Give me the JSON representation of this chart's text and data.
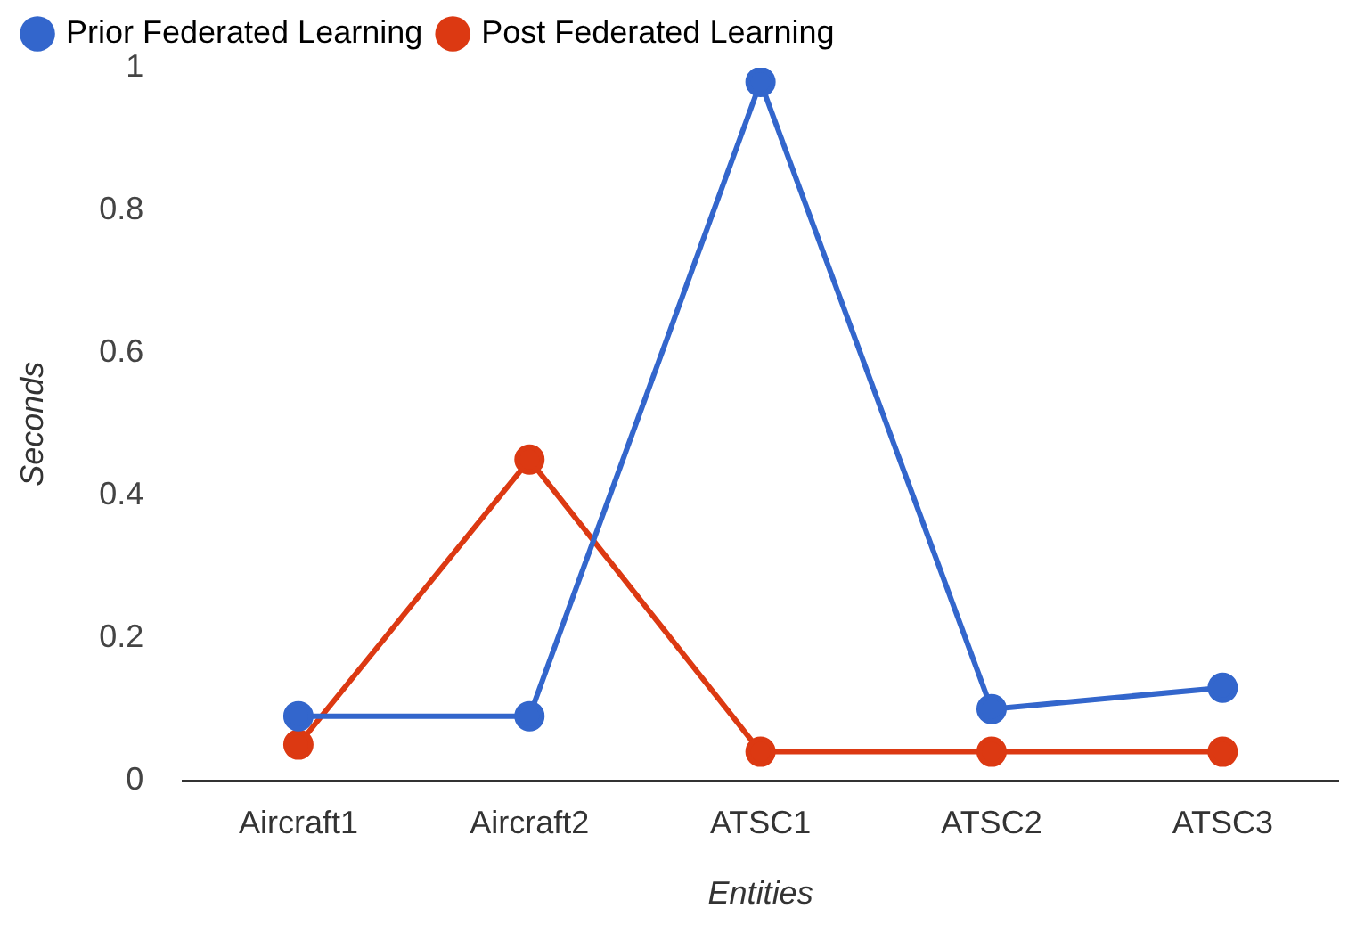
{
  "chart_data": {
    "type": "line",
    "xlabel": "Entities",
    "ylabel": "Seconds",
    "categories": [
      "Aircraft1",
      "Aircraft2",
      "ATSC1",
      "ATSC2",
      "ATSC3"
    ],
    "series": [
      {
        "name": "Prior Federated Learning",
        "color": "#3366cc",
        "values": [
          0.09,
          0.09,
          0.98,
          0.1,
          0.13
        ]
      },
      {
        "name": "Post Federated Learning",
        "color": "#dc3912",
        "values": [
          0.05,
          0.45,
          0.04,
          0.04,
          0.04
        ]
      }
    ],
    "ylim": [
      0,
      1
    ],
    "yticks": [
      0,
      0.2,
      0.4,
      0.6,
      0.8,
      1
    ],
    "grid": false,
    "legend": "top",
    "marker": "circle",
    "line_style": "solid"
  }
}
